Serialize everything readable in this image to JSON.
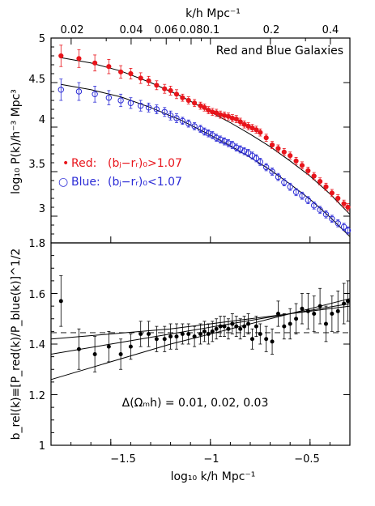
{
  "chart_data": [
    {
      "type": "scatter",
      "panel": "top",
      "title": "Red and Blue Galaxies",
      "xlabel_top": "k/h Mpc⁻¹",
      "ylabel": "log₁₀ P(k)/h⁻³ Mpc³",
      "ylim": [
        2.7,
        5.0
      ],
      "xlim": [
        -1.8,
        -0.3
      ],
      "yticks": [
        "3",
        "3.5",
        "4",
        "4.5",
        "5"
      ],
      "top_ticks": [
        "0.02",
        "0.04",
        "0.06",
        "0.08",
        "0.1",
        "0.2",
        "0.4"
      ],
      "legend": [
        {
          "marker": "•",
          "name": "Red:",
          "cond": "(bⱼ−rᵣ)₀>1.07",
          "color": "#e8141b"
        },
        {
          "marker": "○",
          "name": "Blue:",
          "cond": "(bⱼ−rᵣ)₀<1.07",
          "color": "#2b2bd6"
        }
      ],
      "series": [
        {
          "name": "Red",
          "color": "#e8141b",
          "filled": true,
          "x": [
            -1.75,
            -1.66,
            -1.58,
            -1.51,
            -1.45,
            -1.4,
            -1.35,
            -1.31,
            -1.27,
            -1.23,
            -1.2,
            -1.17,
            -1.14,
            -1.11,
            -1.08,
            -1.05,
            -1.03,
            -1.01,
            -0.99,
            -0.97,
            -0.95,
            -0.93,
            -0.91,
            -0.89,
            -0.87,
            -0.85,
            -0.83,
            -0.81,
            -0.79,
            -0.77,
            -0.75,
            -0.72,
            -0.69,
            -0.66,
            -0.63,
            -0.6,
            -0.57,
            -0.54,
            -0.51,
            -0.48,
            -0.45,
            -0.42,
            -0.39,
            -0.36,
            -0.33,
            -0.31
          ],
          "y": [
            4.8,
            4.77,
            4.72,
            4.68,
            4.62,
            4.6,
            4.55,
            4.52,
            4.47,
            4.43,
            4.41,
            4.37,
            4.33,
            4.3,
            4.27,
            4.24,
            4.22,
            4.19,
            4.17,
            4.16,
            4.14,
            4.13,
            4.12,
            4.1,
            4.09,
            4.06,
            4.03,
            4.01,
            3.99,
            3.97,
            3.94,
            3.88,
            3.8,
            3.76,
            3.72,
            3.68,
            3.62,
            3.57,
            3.51,
            3.45,
            3.39,
            3.33,
            3.26,
            3.2,
            3.14,
            3.1
          ],
          "err": [
            0.12,
            0.1,
            0.09,
            0.08,
            0.07,
            0.06,
            0.06,
            0.05,
            0.05,
            0.05,
            0.05,
            0.05,
            0.04,
            0.04,
            0.04,
            0.04,
            0.04,
            0.04,
            0.04,
            0.04,
            0.04,
            0.04,
            0.04,
            0.04,
            0.04,
            0.04,
            0.04,
            0.04,
            0.04,
            0.04,
            0.04,
            0.04,
            0.04,
            0.04,
            0.04,
            0.04,
            0.04,
            0.04,
            0.04,
            0.04,
            0.04,
            0.04,
            0.04,
            0.04,
            0.04,
            0.04
          ]
        },
        {
          "name": "Blue",
          "color": "#2b2bd6",
          "filled": false,
          "x": [
            -1.75,
            -1.66,
            -1.58,
            -1.51,
            -1.45,
            -1.4,
            -1.35,
            -1.31,
            -1.27,
            -1.23,
            -1.2,
            -1.17,
            -1.14,
            -1.11,
            -1.08,
            -1.05,
            -1.03,
            -1.01,
            -0.99,
            -0.97,
            -0.95,
            -0.93,
            -0.91,
            -0.89,
            -0.87,
            -0.85,
            -0.83,
            -0.81,
            -0.79,
            -0.77,
            -0.75,
            -0.72,
            -0.69,
            -0.66,
            -0.63,
            -0.6,
            -0.57,
            -0.54,
            -0.51,
            -0.48,
            -0.45,
            -0.42,
            -0.39,
            -0.36,
            -0.33,
            -0.31
          ],
          "y": [
            4.42,
            4.4,
            4.37,
            4.33,
            4.3,
            4.27,
            4.24,
            4.22,
            4.2,
            4.17,
            4.13,
            4.1,
            4.07,
            4.04,
            4.01,
            3.98,
            3.95,
            3.93,
            3.91,
            3.88,
            3.86,
            3.84,
            3.82,
            3.8,
            3.77,
            3.75,
            3.73,
            3.71,
            3.68,
            3.65,
            3.61,
            3.55,
            3.5,
            3.44,
            3.38,
            3.33,
            3.27,
            3.23,
            3.18,
            3.12,
            3.07,
            3.02,
            2.97,
            2.92,
            2.88,
            2.84
          ],
          "err": [
            0.12,
            0.1,
            0.09,
            0.08,
            0.07,
            0.06,
            0.06,
            0.05,
            0.05,
            0.05,
            0.05,
            0.05,
            0.04,
            0.04,
            0.04,
            0.04,
            0.04,
            0.04,
            0.04,
            0.04,
            0.04,
            0.04,
            0.04,
            0.04,
            0.04,
            0.04,
            0.04,
            0.04,
            0.04,
            0.04,
            0.04,
            0.04,
            0.04,
            0.04,
            0.04,
            0.04,
            0.04,
            0.04,
            0.04,
            0.04,
            0.04,
            0.04,
            0.04,
            0.04,
            0.04,
            0.04
          ]
        }
      ],
      "model_curves": [
        {
          "x": [
            -1.75,
            -1.6,
            -1.45,
            -1.3,
            -1.15,
            -1.0,
            -0.9,
            -0.8,
            -0.7,
            -0.6,
            -0.5,
            -0.4,
            -0.3
          ],
          "y": [
            4.78,
            4.72,
            4.63,
            4.5,
            4.35,
            4.17,
            4.05,
            3.92,
            3.78,
            3.62,
            3.45,
            3.25,
            3.02
          ]
        },
        {
          "x": [
            -1.75,
            -1.6,
            -1.45,
            -1.3,
            -1.15,
            -1.0,
            -0.9,
            -0.8,
            -0.7,
            -0.6,
            -0.5,
            -0.4,
            -0.3
          ],
          "y": [
            4.48,
            4.42,
            4.34,
            4.22,
            4.08,
            3.91,
            3.79,
            3.66,
            3.52,
            3.36,
            3.19,
            2.99,
            2.77
          ]
        }
      ]
    },
    {
      "type": "scatter",
      "panel": "bottom",
      "xlabel": "log₁₀ k/h Mpc⁻¹",
      "ylabel": "b_rel(k)≡[P_red(k)/P_blue(k)]^1/2",
      "xlim": [
        -1.8,
        -0.3
      ],
      "ylim": [
        1.0,
        1.8
      ],
      "xticks": [
        "−1.5",
        "−1",
        "−0.5"
      ],
      "yticks": [
        "1",
        "1.2",
        "1.4",
        "1.6",
        "1.8"
      ],
      "annotation": "Δ(Ωₘh) = 0.01, 0.02, 0.03",
      "dashed_line_y": 1.445,
      "series": [
        {
          "name": "b_rel",
          "color": "#000000",
          "x": [
            -1.75,
            -1.66,
            -1.58,
            -1.51,
            -1.45,
            -1.4,
            -1.35,
            -1.31,
            -1.27,
            -1.23,
            -1.2,
            -1.17,
            -1.14,
            -1.11,
            -1.08,
            -1.05,
            -1.03,
            -1.01,
            -0.99,
            -0.97,
            -0.95,
            -0.93,
            -0.91,
            -0.89,
            -0.87,
            -0.85,
            -0.83,
            -0.81,
            -0.79,
            -0.77,
            -0.75,
            -0.72,
            -0.69,
            -0.66,
            -0.63,
            -0.6,
            -0.57,
            -0.54,
            -0.51,
            -0.48,
            -0.45,
            -0.42,
            -0.39,
            -0.36,
            -0.33,
            -0.31
          ],
          "y": [
            1.57,
            1.38,
            1.36,
            1.39,
            1.36,
            1.39,
            1.44,
            1.44,
            1.42,
            1.42,
            1.43,
            1.43,
            1.44,
            1.44,
            1.43,
            1.44,
            1.45,
            1.44,
            1.45,
            1.46,
            1.47,
            1.47,
            1.46,
            1.48,
            1.47,
            1.46,
            1.47,
            1.48,
            1.42,
            1.47,
            1.44,
            1.42,
            1.41,
            1.52,
            1.47,
            1.48,
            1.5,
            1.54,
            1.53,
            1.52,
            1.55,
            1.48,
            1.52,
            1.53,
            1.56,
            1.57
          ],
          "err": [
            0.1,
            0.08,
            0.07,
            0.06,
            0.06,
            0.05,
            0.05,
            0.05,
            0.05,
            0.05,
            0.05,
            0.05,
            0.04,
            0.04,
            0.04,
            0.04,
            0.04,
            0.04,
            0.04,
            0.04,
            0.04,
            0.04,
            0.04,
            0.04,
            0.04,
            0.04,
            0.04,
            0.04,
            0.04,
            0.04,
            0.04,
            0.05,
            0.05,
            0.05,
            0.05,
            0.06,
            0.06,
            0.06,
            0.07,
            0.07,
            0.07,
            0.07,
            0.07,
            0.08,
            0.08,
            0.08
          ]
        }
      ],
      "model_curves": [
        {
          "x": [
            -1.8,
            -1.5,
            -1.2,
            -0.9,
            -0.6,
            -0.3
          ],
          "y": [
            1.42,
            1.44,
            1.46,
            1.49,
            1.52,
            1.55
          ]
        },
        {
          "x": [
            -1.8,
            -1.5,
            -1.2,
            -0.9,
            -0.6,
            -0.3
          ],
          "y": [
            1.36,
            1.4,
            1.44,
            1.48,
            1.52,
            1.56
          ]
        },
        {
          "x": [
            -1.8,
            -1.5,
            -1.2,
            -0.9,
            -0.6,
            -0.3
          ],
          "y": [
            1.26,
            1.33,
            1.4,
            1.46,
            1.52,
            1.58
          ]
        }
      ]
    }
  ]
}
